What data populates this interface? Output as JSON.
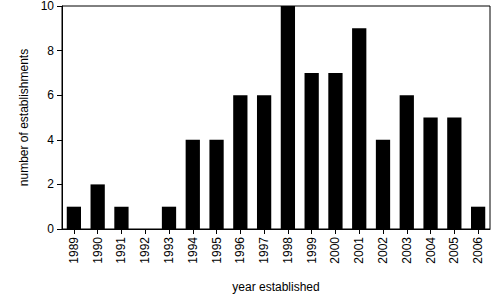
{
  "chart_data": {
    "type": "bar",
    "x_label": "year established",
    "y_label": "number of establishments",
    "categories": [
      "1989",
      "1990",
      "1991",
      "1992",
      "1993",
      "1994",
      "1995",
      "1996",
      "1997",
      "1998",
      "1999",
      "2000",
      "2001",
      "2002",
      "2003",
      "2004",
      "2005",
      "2006"
    ],
    "values": [
      1,
      2,
      1,
      0,
      1,
      4,
      4,
      6,
      6,
      10,
      7,
      7,
      9,
      4,
      6,
      5,
      5,
      1
    ],
    "color": "#000000",
    "ylim": [
      0,
      10
    ],
    "yticks": [
      0,
      2,
      4,
      6,
      8,
      10
    ],
    "grid": false
  }
}
